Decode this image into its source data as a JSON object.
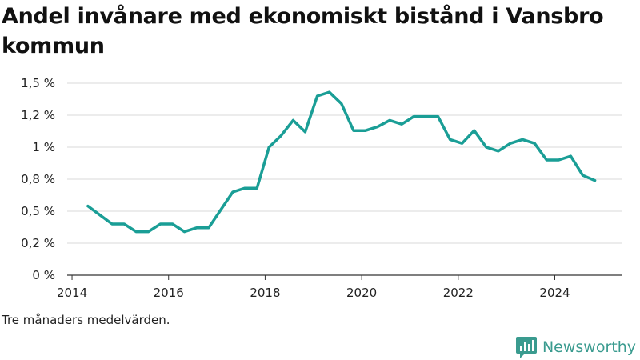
{
  "chart_data": {
    "type": "line",
    "title": "Andel invånare med ekonomiskt bistånd i Vansbro kommun",
    "xlabel": "",
    "ylabel": "",
    "xlim": [
      2013.9,
      2025.4
    ],
    "ylim": [
      0,
      1.5
    ],
    "x_ticks": [
      2014,
      2016,
      2018,
      2020,
      2022,
      2024
    ],
    "y_ticks": [
      {
        "value": 0,
        "label": "0 %"
      },
      {
        "value": 0.25,
        "label": "0,2 %"
      },
      {
        "value": 0.5,
        "label": "0,5 %"
      },
      {
        "value": 0.75,
        "label": "0,8 %"
      },
      {
        "value": 1.0,
        "label": "1 %"
      },
      {
        "value": 1.25,
        "label": "1,2 %"
      },
      {
        "value": 1.5,
        "label": "1,5 %"
      }
    ],
    "grid": "horizontal",
    "color": "#1a9e96",
    "series": [
      {
        "points": [
          [
            2014.33,
            0.54
          ],
          [
            2014.58,
            0.47
          ],
          [
            2014.83,
            0.4
          ],
          [
            2015.08,
            0.4
          ],
          [
            2015.33,
            0.34
          ],
          [
            2015.58,
            0.34
          ],
          [
            2015.83,
            0.4
          ],
          [
            2016.08,
            0.4
          ],
          [
            2016.33,
            0.34
          ],
          [
            2016.58,
            0.37
          ],
          [
            2016.83,
            0.37
          ],
          [
            2017.08,
            0.51
          ],
          [
            2017.33,
            0.65
          ],
          [
            2017.58,
            0.68
          ],
          [
            2017.83,
            0.68
          ],
          [
            2018.08,
            1.0
          ],
          [
            2018.33,
            1.09
          ],
          [
            2018.58,
            1.21
          ],
          [
            2018.83,
            1.12
          ],
          [
            2019.08,
            1.4
          ],
          [
            2019.33,
            1.43
          ],
          [
            2019.58,
            1.34
          ],
          [
            2019.83,
            1.13
          ],
          [
            2020.08,
            1.13
          ],
          [
            2020.33,
            1.16
          ],
          [
            2020.58,
            1.21
          ],
          [
            2020.83,
            1.18
          ],
          [
            2021.08,
            1.24
          ],
          [
            2021.33,
            1.24
          ],
          [
            2021.58,
            1.24
          ],
          [
            2021.83,
            1.06
          ],
          [
            2022.08,
            1.03
          ],
          [
            2022.33,
            1.13
          ],
          [
            2022.58,
            1.0
          ],
          [
            2022.83,
            0.97
          ],
          [
            2023.08,
            1.03
          ],
          [
            2023.33,
            1.06
          ],
          [
            2023.58,
            1.03
          ],
          [
            2023.83,
            0.9
          ],
          [
            2024.08,
            0.9
          ],
          [
            2024.33,
            0.93
          ],
          [
            2024.58,
            0.78
          ],
          [
            2024.83,
            0.74
          ]
        ]
      }
    ]
  },
  "caption": "Tre månaders medelvärden.",
  "brand": {
    "name": "Newsworthy",
    "color": "#3a9b8f"
  }
}
